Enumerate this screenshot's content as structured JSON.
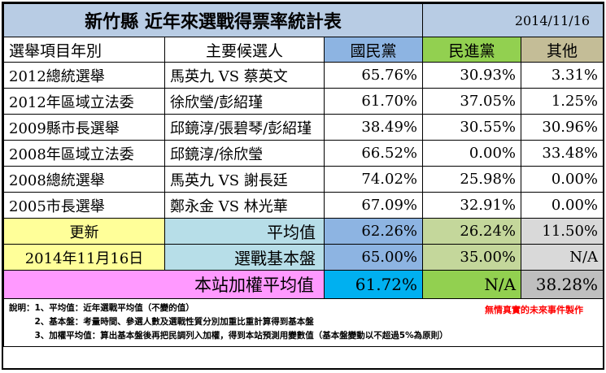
{
  "title": "新竹縣 近年來選戰得票率統計表",
  "date": "2014/11/16",
  "headers": {
    "item": "選舉項目年別",
    "candidates": "主要候選人",
    "kmt": "國民黨",
    "dpp": "民進黨",
    "other": "其他"
  },
  "rows": [
    {
      "item": "2012總統選舉",
      "candidates": "馬英九 VS 蔡英文",
      "kmt": "65.76%",
      "dpp": "30.93%",
      "other": "3.31%"
    },
    {
      "item": "2012年區域立法委",
      "candidates": "徐欣瑩/彭紹瑾",
      "kmt": "61.70%",
      "dpp": "37.05%",
      "other": "1.25%"
    },
    {
      "item": "2009縣市長選舉",
      "candidates": "邱鏡淳/張碧琴/彭紹瑾",
      "kmt": "38.49%",
      "dpp": "30.55%",
      "other": "30.96%"
    },
    {
      "item": "2008年區域立法委",
      "candidates": "邱鏡淳/徐欣瑩",
      "kmt": "66.52%",
      "dpp": "0.00%",
      "other": "33.48%"
    },
    {
      "item": "2008總統選舉",
      "candidates": "馬英九 VS 謝長廷",
      "kmt": "74.02%",
      "dpp": "25.98%",
      "other": "0.00%"
    },
    {
      "item": "2005市長選舉",
      "candidates": "鄭永金 VS 林光華",
      "kmt": "67.09%",
      "dpp": "32.91%",
      "other": "0.00%"
    }
  ],
  "update": {
    "label": "更新",
    "date": "2014年11月16日"
  },
  "average": {
    "label": "平均值",
    "kmt": "62.26%",
    "dpp": "26.24%",
    "other": "11.50%"
  },
  "base": {
    "label": "選戰基本盤",
    "kmt": "65.00%",
    "dpp": "35.00%",
    "other": "N/A"
  },
  "weighted": {
    "label": "本站加權平均值",
    "kmt": "61.72%",
    "dpp": "N/A",
    "other": "38.28%"
  },
  "notes": {
    "line1": "說明：1、平均值：近年選戰平均值（不變的值）",
    "line2": "　　　2、基本盤：考量時間、參選人數及選戰性質分別加重比重計算得到基本盤",
    "line3": "　　　3、加權平均值：算出基本盤後再把民調列入加權，得到本站預測用變數值（基本盤變動以不超過5%為原則）",
    "credit": "無情真實的未來事件製作"
  },
  "colors": {
    "title_bg": "#b8cce4",
    "kmt": "#8db4e2",
    "dpp": "#92d050",
    "other": "#c4bd97",
    "update_bg": "#ffff99",
    "weighted_label_bg": "#ff99ff",
    "weighted_kmt_bg": "#00b0f0",
    "credit": "#ff0000"
  }
}
